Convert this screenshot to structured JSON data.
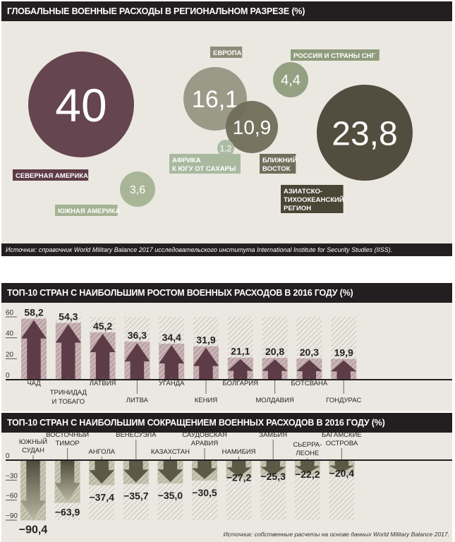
{
  "colors": {
    "dark": "#231f20",
    "plum": "#5e3c47",
    "olive": "#6b6a52",
    "bg": "#ebe8e1"
  },
  "chart_data": [
    {
      "type": "bubble",
      "title": "ГЛОБАЛЬНЫЕ ВОЕННЫЕ РАСХОДЫ В РЕГИОНАЛЬНОМ РАЗРЕЗЕ (%)",
      "categories": [
        "СЕВЕРНАЯ АМЕРИКА",
        "ЕВРОПА",
        "РОССИЯ И СТРАНЫ СНГ",
        "БЛИЖНИЙ ВОСТОК",
        "АЗИАТСКО-ТИХООКЕАНСКИЙ РЕГИОН",
        "АФРИКА К ЮГУ ОТ САХАРЫ",
        "ЮЖНАЯ АМЕРИКА"
      ],
      "values": [
        40,
        16.1,
        4.4,
        10.9,
        23.8,
        1.2,
        3.6
      ],
      "labels": [
        "40",
        "16,1",
        "4,4",
        "10,9",
        "23,8",
        "1,2",
        "3,6"
      ],
      "source": "Источник: справочник World Military Balance 2017 исследовательского института International Institute for Security Studies (IISS)."
    },
    {
      "type": "bar",
      "title": "ТОП-10 СТРАН С НАИБОЛЬШИМ РОСТОМ ВОЕННЫХ РАСХОДОВ В 2016 ГОДУ (%)",
      "categories": [
        "ЧАД",
        "ТРИНИДАД И ТОБАГО",
        "ЛАТВИЯ",
        "ЛИТВА",
        "УГАНДА",
        "КЕНИЯ",
        "БОЛГАРИЯ",
        "МОЛДАВИЯ",
        "БОТСВАНА",
        "ГОНДУРАС"
      ],
      "values": [
        58.2,
        54.3,
        45.2,
        36.3,
        34.4,
        31.9,
        21.1,
        20.8,
        20.3,
        19.9
      ],
      "labels": [
        "58,2",
        "54,3",
        "45,2",
        "36,3",
        "34,4",
        "31,9",
        "21,1",
        "20,8",
        "20,3",
        "19,9"
      ],
      "yticks": [
        "0",
        "20",
        "40",
        "60"
      ],
      "ylim": [
        0,
        60
      ]
    },
    {
      "type": "bar",
      "title": "ТОП-10 СТРАН С НАИБОЛЬШИМ СОКРАЩЕНИЕМ ВОЕННЫХ РАСХОДОВ В 2016 ГОДУ  (%)",
      "categories": [
        "ЮЖНЫЙ СУДАН",
        "ВОСТОЧНЫЙ ТИМОР",
        "АНГОЛА",
        "ВЕНЕСУЭЛА",
        "КАЗАХСТАН",
        "САУДОВСКАЯ АРАВИЯ",
        "НАМИБИЯ",
        "ЗАМБИЯ",
        "СЬЕРРА-ЛЕОНЕ",
        "БАГАМСКИЕ ОСТРОВА"
      ],
      "values": [
        -90.4,
        -63.9,
        -37.4,
        -35.7,
        -35.0,
        -30.5,
        -27.2,
        -25.3,
        -22.2,
        -20.4
      ],
      "labels": [
        "−90,4",
        "−63,9",
        "−37,4",
        "−35,7",
        "−35,0",
        "−30,5",
        "−27,2",
        "−25,3",
        "−22,2",
        "−20,4"
      ],
      "yticks": [
        "0",
        "−30",
        "−60",
        "−90"
      ],
      "ylim": [
        -90,
        0
      ],
      "source": "Источник: собственные расчеты на основе данных World Military Balance 2017."
    }
  ]
}
